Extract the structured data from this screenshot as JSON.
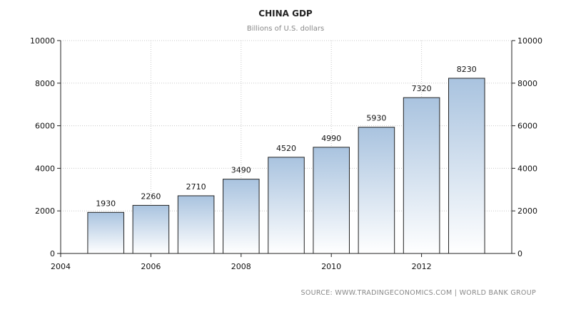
{
  "chart_data": {
    "type": "bar",
    "title": "CHINA GDP",
    "subtitle": "Billions of U.S. dollars",
    "source": "SOURCE: WWW.TRADINGECONOMICS.COM  |  WORLD BANK GROUP",
    "x": [
      2005,
      2006,
      2007,
      2008,
      2009,
      2010,
      2011,
      2012,
      2013
    ],
    "values": [
      1930,
      2260,
      2710,
      3490,
      4520,
      4990,
      5930,
      7320,
      8230
    ],
    "data_labels": [
      "1930",
      "2260",
      "2710",
      "3490",
      "4520",
      "4990",
      "5930",
      "7320",
      "8230"
    ],
    "xlim": [
      2004,
      2014
    ],
    "x_ticks": [
      "2004",
      "2006",
      "2008",
      "2010",
      "2012"
    ],
    "ylim": [
      0,
      10000
    ],
    "y_ticks": [
      "0",
      "2000",
      "4000",
      "6000",
      "8000",
      "10000"
    ],
    "grid": true,
    "bar_color_top": "#a9c3df",
    "bar_color_bottom": "#ffffff"
  }
}
